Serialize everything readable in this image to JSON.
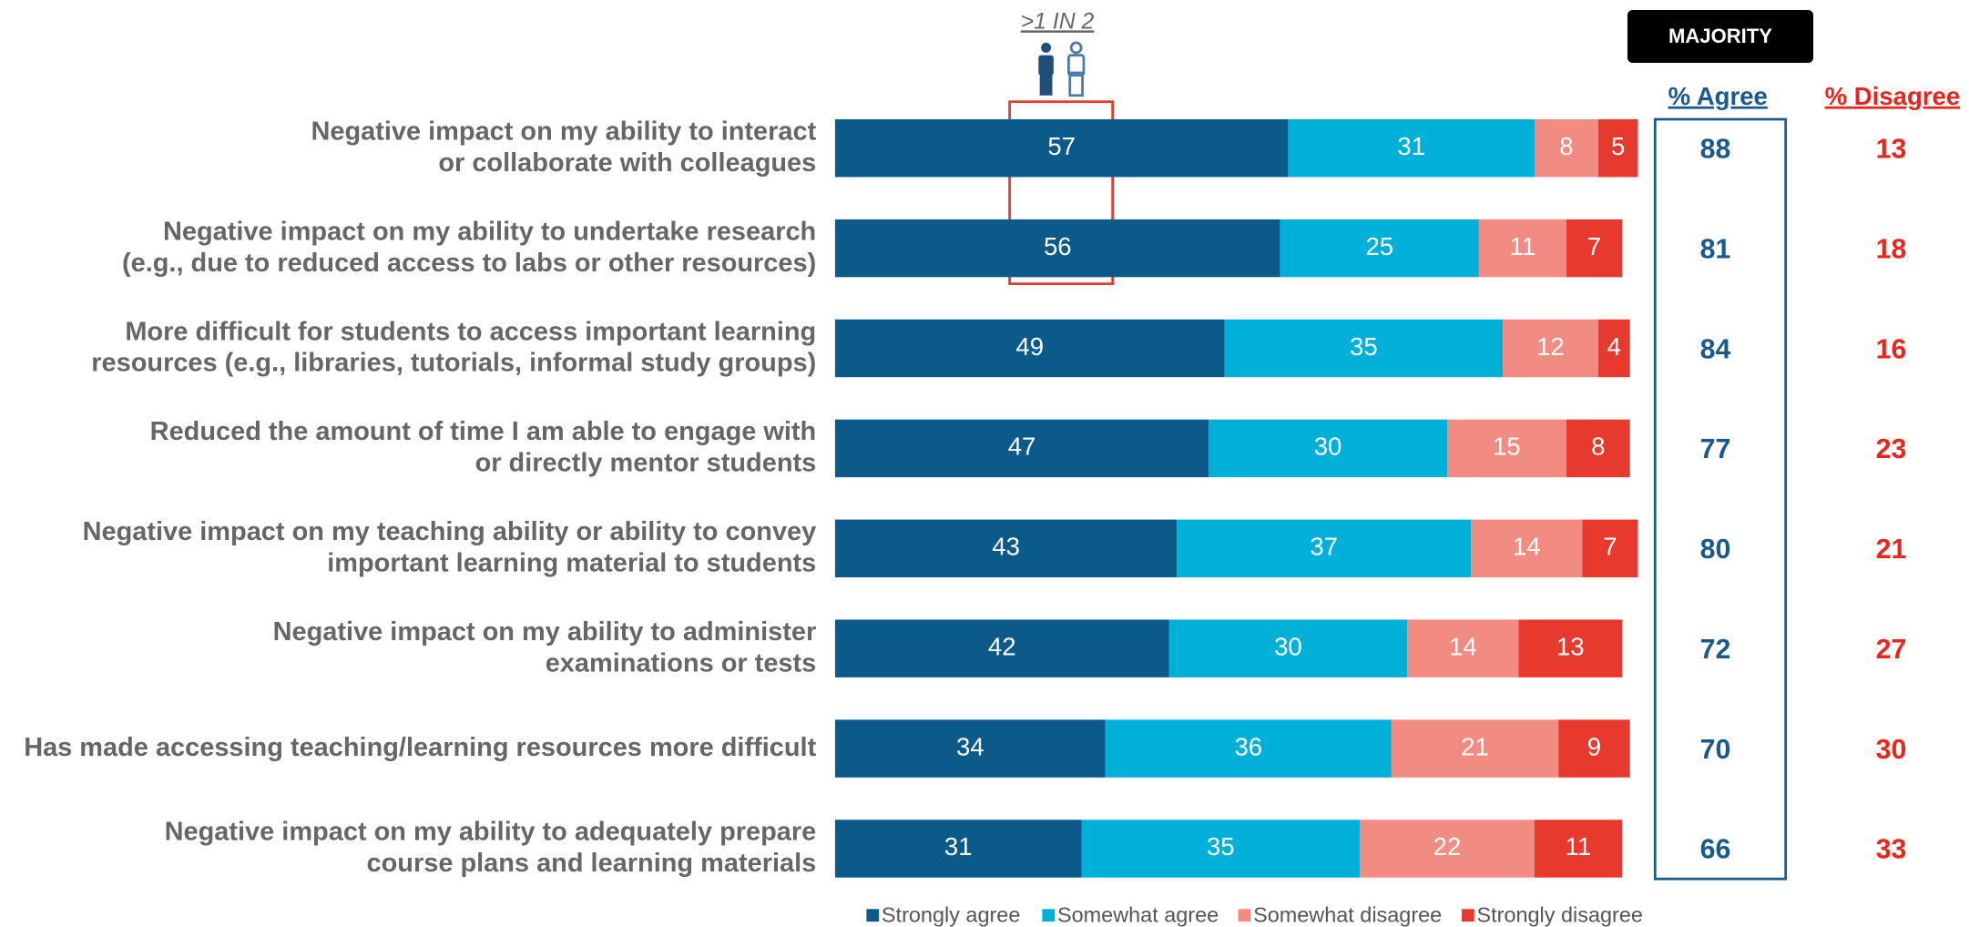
{
  "chart_data": {
    "type": "stacked-barh",
    "categories": [
      "Negative impact on my ability to interact\nor collaborate with colleagues",
      "Negative impact on my ability to undertake research\n(e.g., due to reduced access to labs or other resources)",
      "More difficult for students to access important learning\nresources (e.g., libraries, tutorials, informal study groups)",
      "Reduced the amount of time I am able to engage with\nor directly mentor students",
      "Negative impact on my teaching ability or ability to convey\nimportant learning material to students",
      "Negative impact on my ability to administer\nexaminations or tests",
      "Has made accessing teaching/learning resources more difficult",
      "Negative impact on my ability to adequately prepare\ncourse plans and learning materials"
    ],
    "series": [
      {
        "name": "Strongly agree",
        "color": "#0b5a8a",
        "values": [
          57,
          56,
          49,
          47,
          43,
          42,
          34,
          31
        ]
      },
      {
        "name": "Somewhat agree",
        "color": "#00b0d8",
        "values": [
          31,
          25,
          35,
          30,
          37,
          30,
          36,
          35
        ]
      },
      {
        "name": "Somewhat disagree",
        "color": "#f28b82",
        "values": [
          8,
          11,
          12,
          15,
          14,
          14,
          21,
          22
        ]
      },
      {
        "name": "Strongly disagree",
        "color": "#e8392e",
        "values": [
          5,
          7,
          4,
          8,
          7,
          13,
          9,
          11
        ]
      }
    ],
    "xlim": [
      0,
      100
    ],
    "agree_header": "% Agree",
    "agree_values": [
      88,
      81,
      84,
      77,
      80,
      72,
      70,
      66
    ],
    "disagree_header": "% Disagree",
    "disagree_values": [
      13,
      18,
      16,
      23,
      21,
      27,
      30,
      33
    ],
    "majority_label": "MAJORITY",
    "annotation": ">1 IN 2"
  }
}
